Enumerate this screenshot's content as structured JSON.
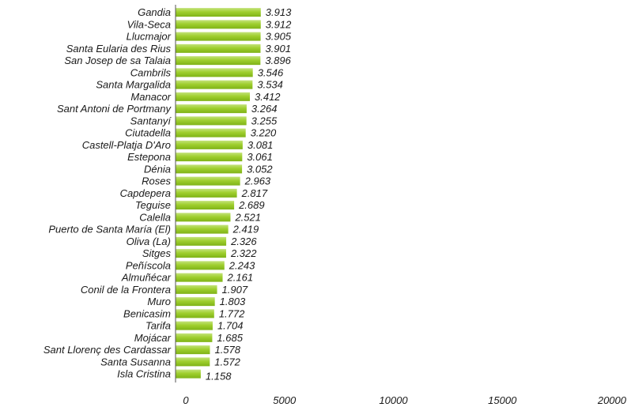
{
  "chart_data": {
    "type": "bar",
    "orientation": "horizontal",
    "categories": [
      "Gandia",
      "Vila-Seca",
      "Llucmajor",
      "Santa Eularia des Rius",
      "San Josep de sa Talaia",
      "Cambrils",
      "Santa Margalida",
      "Manacor",
      "Sant Antoni de Portmany",
      "Santanyí",
      "Ciutadella",
      "Castell-Platja D'Aro",
      "Estepona",
      "Dénia",
      "Roses",
      "Capdepera",
      "Teguise",
      "Calella",
      "Puerto de Santa María (El)",
      "Oliva (La)",
      "Sitges",
      "Peñíscola",
      "Almuñécar",
      "Conil de la Frontera",
      "Muro",
      "Benicasim",
      "Tarifa",
      "Mojácar",
      "Sant Llorenç des Cardassar",
      "Santa Susanna",
      "Isla Cristina"
    ],
    "values": [
      3913,
      3912,
      3905,
      3901,
      3896,
      3546,
      3534,
      3412,
      3264,
      3255,
      3220,
      3081,
      3061,
      3052,
      2963,
      2817,
      2689,
      2521,
      2419,
      2326,
      2322,
      2243,
      2161,
      1907,
      1803,
      1772,
      1704,
      1685,
      1578,
      1572,
      1158
    ],
    "value_labels": [
      "3.913",
      "3.912",
      "3.905",
      "3.901",
      "3.896",
      "3.546",
      "3.534",
      "3.412",
      "3.264",
      "3.255",
      "3.220",
      "3.081",
      "3.061",
      "3.052",
      "2.963",
      "2.817",
      "2.689",
      "2.521",
      "2.419",
      "2.326",
      "2.322",
      "2.243",
      "2.161",
      "1.907",
      "1.803",
      "1.772",
      "1.704",
      "1.685",
      "1.578",
      "1.572",
      "1.158"
    ],
    "x_ticks": [
      "0",
      "5000",
      "10000",
      "15000",
      "20000"
    ],
    "xlim": [
      0,
      20000
    ],
    "grid": false,
    "bar_color": "#8dc21f",
    "bar_highlight": "#c3e27a",
    "title": "",
    "xlabel": "",
    "ylabel": ""
  }
}
